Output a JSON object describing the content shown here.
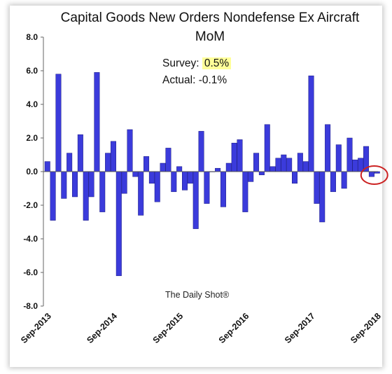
{
  "chart_data": {
    "type": "bar",
    "title": "Capital Goods New Orders Nondefense Ex Aircraft",
    "subtitle": "MoM",
    "xlabel": "",
    "ylabel": "",
    "ylim": [
      -8.0,
      8.0
    ],
    "yticks": [
      -8.0,
      -6.0,
      -4.0,
      -2.0,
      0.0,
      2.0,
      4.0,
      6.0,
      8.0
    ],
    "ytick_labels": [
      "-8.0",
      "-6.0",
      "-4.0",
      "-2.0",
      "0.0",
      "2.0",
      "4.0",
      "6.0",
      "8.0"
    ],
    "xtick_labels": [
      "Sep-2013",
      "Sep-2014",
      "Sep-2015",
      "Sep-2016",
      "Sep-2017",
      "Sep-2018"
    ],
    "categories": [
      "Sep-2013",
      "Oct-2013",
      "Nov-2013",
      "Dec-2013",
      "Jan-2014",
      "Feb-2014",
      "Mar-2014",
      "Apr-2014",
      "May-2014",
      "Jun-2014",
      "Jul-2014",
      "Aug-2014",
      "Sep-2014",
      "Oct-2014",
      "Nov-2014",
      "Dec-2014",
      "Jan-2015",
      "Feb-2015",
      "Mar-2015",
      "Apr-2015",
      "May-2015",
      "Jun-2015",
      "Jul-2015",
      "Aug-2015",
      "Sep-2015",
      "Oct-2015",
      "Nov-2015",
      "Dec-2015",
      "Jan-2016",
      "Feb-2016",
      "Mar-2016",
      "Apr-2016",
      "May-2016",
      "Jun-2016",
      "Jul-2016",
      "Aug-2016",
      "Sep-2016",
      "Oct-2016",
      "Nov-2016",
      "Dec-2016",
      "Jan-2017",
      "Feb-2017",
      "Mar-2017",
      "Apr-2017",
      "May-2017",
      "Jun-2017",
      "Jul-2017",
      "Aug-2017",
      "Sep-2017",
      "Oct-2017",
      "Nov-2017",
      "Dec-2017",
      "Jan-2018",
      "Feb-2018",
      "Mar-2018",
      "Apr-2018",
      "May-2018",
      "Jun-2018",
      "Jul-2018",
      "Aug-2018",
      "Sep-2018"
    ],
    "values": [
      0.6,
      -2.9,
      5.8,
      -1.6,
      1.1,
      -1.5,
      2.2,
      -2.9,
      -1.5,
      5.9,
      -2.4,
      1.1,
      1.8,
      -6.2,
      -1.3,
      2.5,
      -0.3,
      -2.6,
      0.9,
      -0.7,
      -1.8,
      0.5,
      1.4,
      -1.2,
      0.3,
      -1.1,
      -0.7,
      -3.4,
      2.4,
      -1.9,
      0.0,
      0.2,
      -2.1,
      0.5,
      1.7,
      1.9,
      -2.4,
      -0.6,
      1.1,
      -0.2,
      2.8,
      0.3,
      0.8,
      1.0,
      0.8,
      -0.7,
      1.1,
      0.6,
      5.7,
      -1.9,
      -3.0,
      2.8,
      -1.2,
      1.6,
      -1.0,
      2.0,
      0.7,
      0.8,
      1.5,
      -0.3,
      -0.1
    ],
    "bar_color": "#3b3bdb",
    "annotation": {
      "survey_label": "Survey:",
      "survey_value": "0.5%",
      "actual_label": "Actual:",
      "actual_value": "-0.1%",
      "highlight_color": "#ffff99",
      "circle_color": "#cc2222"
    },
    "source": "The Daily Shot®",
    "grid": false
  }
}
